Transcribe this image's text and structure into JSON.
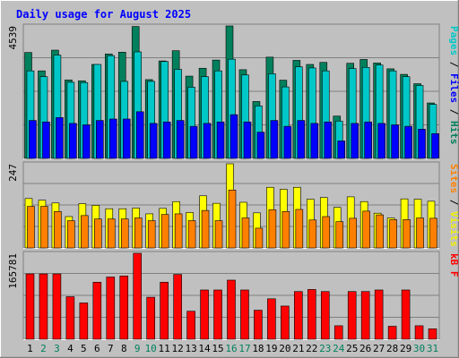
{
  "chart_data": {
    "type": "bar",
    "title": "Daily usage for August 2025",
    "x": [
      1,
      2,
      3,
      4,
      5,
      6,
      7,
      8,
      9,
      10,
      11,
      12,
      13,
      14,
      15,
      16,
      17,
      18,
      19,
      20,
      21,
      22,
      23,
      24,
      25,
      26,
      27,
      28,
      29,
      30,
      31
    ],
    "weekend_days": [
      2,
      3,
      9,
      10,
      16,
      17,
      23,
      24,
      30,
      31
    ],
    "panels": [
      {
        "id": "hits",
        "max_label": "4539",
        "ylim": [
          0,
          4539
        ],
        "legend": [
          {
            "text": "Hits",
            "color": "#00805c"
          },
          {
            "text": "Files",
            "color": "#0000ff"
          },
          {
            "text": "Pages",
            "color": "#00c8c8"
          }
        ],
        "series": [
          {
            "name": "Hits",
            "color": "#00805c",
            "values": [
              3630,
              3000,
              3710,
              2690,
              2660,
              3220,
              3580,
              3640,
              4520,
              2700,
              3340,
              3690,
              2820,
              3090,
              3370,
              4600,
              3040,
              1950,
              3470,
              2680,
              3360,
              3220,
              3290,
              1450,
              3260,
              3390,
              3270,
              3070,
              2880,
              2560,
              1900
            ]
          },
          {
            "name": "Files",
            "color": "#00c8c8",
            "values": [
              3000,
              2800,
              3540,
              2610,
              2600,
              3220,
              3520,
              2640,
              3650,
              2640,
              3320,
              3050,
              2440,
              2800,
              3000,
              3400,
              2860,
              1800,
              2900,
              2450,
              3140,
              3100,
              3000,
              1280,
              3080,
              3120,
              3200,
              3000,
              2800,
              2500,
              1850
            ]
          },
          {
            "name": "Pages",
            "color": "#0000ff",
            "values": [
              1300,
              1250,
              1400,
              1200,
              1150,
              1300,
              1350,
              1350,
              1600,
              1200,
              1250,
              1300,
              1100,
              1200,
              1250,
              1500,
              1250,
              900,
              1300,
              1100,
              1300,
              1200,
              1250,
              600,
              1200,
              1250,
              1200,
              1150,
              1100,
              1000,
              850
            ]
          }
        ]
      },
      {
        "id": "visits",
        "max_label": "247",
        "ylim": [
          0,
          247
        ],
        "legend": [
          {
            "text": "Visits",
            "color": "#f0f000"
          },
          {
            "text": "Sites",
            "color": "#ff8000"
          }
        ],
        "series": [
          {
            "name": "Visits",
            "color": "#ffff00",
            "values": [
              145,
              140,
              132,
              92,
              130,
              125,
              115,
              115,
              117,
              100,
              116,
              136,
              104,
              153,
              131,
              247,
              134,
              103,
              178,
              172,
              178,
              143,
              148,
              119,
              150,
              136,
              102,
              88,
              144,
              143,
              137
            ]
          },
          {
            "name": "Sites",
            "color": "#ff8000",
            "values": [
              122,
              122,
              107,
              80,
              95,
              85,
              85,
              85,
              88,
              80,
              98,
              100,
              80,
              110,
              80,
              170,
              88,
              58,
              112,
              107,
              113,
              82,
              92,
              77,
              87,
              108,
              97,
              83,
              83,
              88,
              87
            ]
          }
        ]
      },
      {
        "id": "kbytes",
        "max_label": "165781",
        "ylim": [
          0,
          165781
        ],
        "legend": [
          {
            "text": "kB F",
            "color": "#ff0000"
          }
        ],
        "series": [
          {
            "name": "kB F",
            "color": "#ff0000",
            "values": [
              126000,
              126000,
              126000,
              82000,
              70000,
              110000,
              120000,
              122000,
              165781,
              81000,
              110000,
              125000,
              54000,
              95000,
              95000,
              114000,
              95000,
              56000,
              78000,
              64000,
              92000,
              96000,
              92000,
              26000,
              92000,
              92000,
              95000,
              25000,
              95000,
              26000,
              20000
            ]
          }
        ]
      }
    ]
  }
}
